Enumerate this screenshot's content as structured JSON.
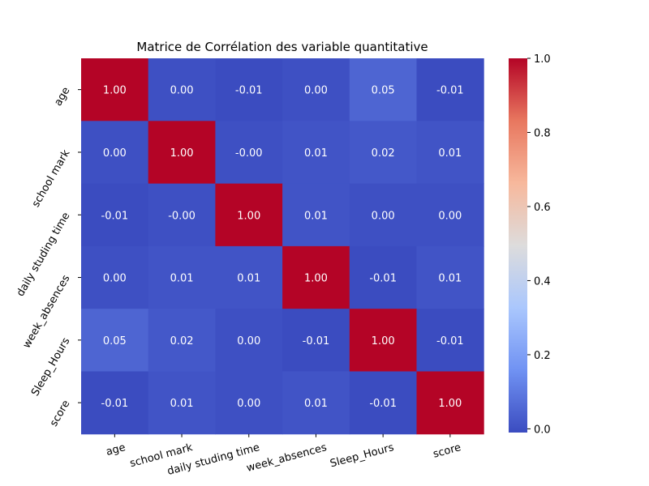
{
  "chart_data": {
    "type": "heatmap",
    "title": "Matrice de Corrélation des variable quantitative",
    "variables": [
      "age",
      "school mark",
      "daily studing time",
      "week_absences",
      "Sleep_Hours",
      "score"
    ],
    "matrix": [
      [
        1.0,
        0.0,
        -0.01,
        0.0,
        0.05,
        -0.01
      ],
      [
        0.0,
        1.0,
        -0.0,
        0.01,
        0.02,
        0.01
      ],
      [
        -0.01,
        -0.0,
        1.0,
        0.01,
        0.0,
        0.0
      ],
      [
        0.0,
        0.01,
        0.01,
        1.0,
        -0.01,
        0.01
      ],
      [
        0.05,
        0.02,
        0.0,
        -0.01,
        1.0,
        -0.01
      ],
      [
        -0.01,
        0.01,
        0.0,
        0.01,
        -0.01,
        1.0
      ]
    ],
    "cell_labels": [
      [
        "1.00",
        "0.00",
        "-0.01",
        "0.00",
        "0.05",
        "-0.01"
      ],
      [
        "0.00",
        "1.00",
        "-0.00",
        "0.01",
        "0.02",
        "0.01"
      ],
      [
        "-0.01",
        "-0.00",
        "1.00",
        "0.01",
        "0.00",
        "0.00"
      ],
      [
        "0.00",
        "0.01",
        "0.01",
        "1.00",
        "-0.01",
        "0.01"
      ],
      [
        "0.05",
        "0.02",
        "0.00",
        "-0.01",
        "1.00",
        "-0.01"
      ],
      [
        "-0.01",
        "0.01",
        "0.00",
        "0.01",
        "-0.01",
        "1.00"
      ]
    ],
    "colormap": "coolwarm",
    "colorbar": {
      "range": [
        -0.01,
        1.0
      ],
      "ticks": [
        0.0,
        0.2,
        0.4,
        0.6,
        0.8,
        1.0
      ],
      "tick_labels": [
        "0.0",
        "0.2",
        "0.4",
        "0.6",
        "0.8",
        "1.0"
      ]
    },
    "annotation_colors": {
      "text": "#ffffff"
    },
    "colormap_stops": [
      "#3b4cc0",
      "#7092f3",
      "#aac7fd",
      "#dddcdc",
      "#f7b89c",
      "#e8775f",
      "#b40426"
    ]
  }
}
